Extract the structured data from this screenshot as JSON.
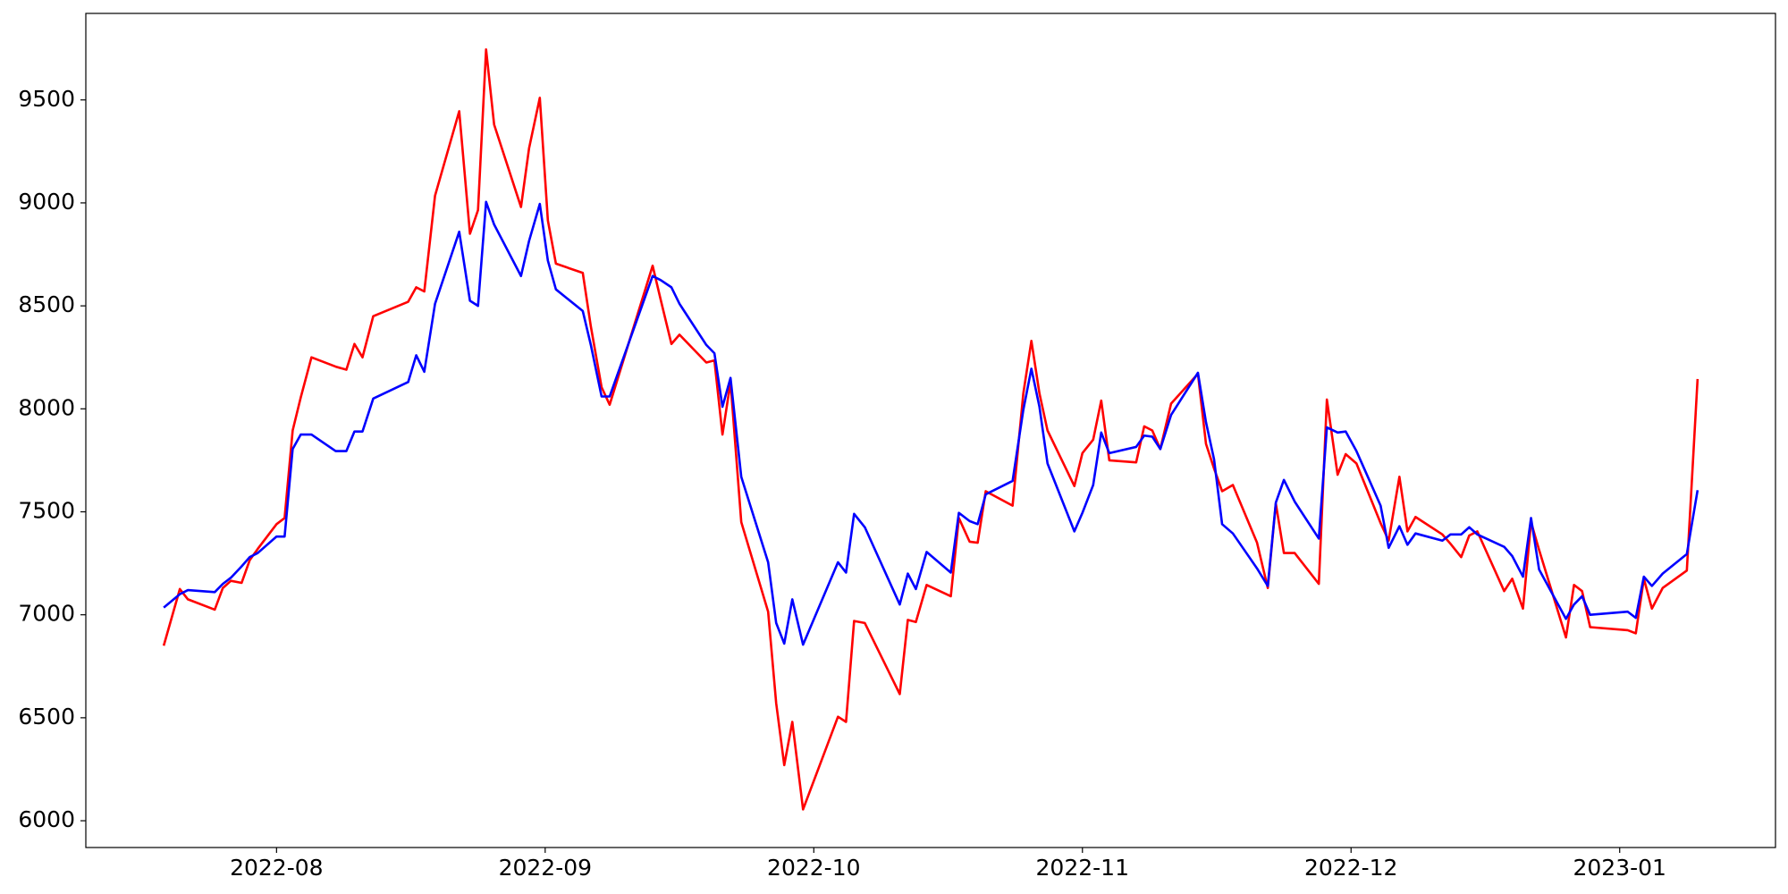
{
  "chart_data": {
    "type": "line",
    "x": [
      7.58,
      7.64,
      7.67,
      7.77,
      7.8,
      7.83,
      7.87,
      7.9,
      7.93,
      8.0,
      8.03,
      8.06,
      8.09,
      8.13,
      8.22,
      8.26,
      8.29,
      8.32,
      8.36,
      8.49,
      8.52,
      8.55,
      8.59,
      8.68,
      8.72,
      8.75,
      8.78,
      8.81,
      8.91,
      8.94,
      8.98,
      9.01,
      9.04,
      9.14,
      9.17,
      9.21,
      9.24,
      9.4,
      9.43,
      9.47,
      9.5,
      9.6,
      9.63,
      9.66,
      9.69,
      9.73,
      9.83,
      9.86,
      9.89,
      9.92,
      9.96,
      10.09,
      10.12,
      10.15,
      10.19,
      10.32,
      10.35,
      10.38,
      10.42,
      10.51,
      10.54,
      10.58,
      10.61,
      10.64,
      10.74,
      10.78,
      10.81,
      10.84,
      10.87,
      10.97,
      11.0,
      11.04,
      11.07,
      11.1,
      11.2,
      11.23,
      11.26,
      11.29,
      11.33,
      11.43,
      11.46,
      11.49,
      11.52,
      11.56,
      11.65,
      11.69,
      11.72,
      11.75,
      11.79,
      11.88,
      11.91,
      11.95,
      11.98,
      12.02,
      12.11,
      12.14,
      12.18,
      12.21,
      12.24,
      12.34,
      12.37,
      12.41,
      12.44,
      12.47,
      12.57,
      12.6,
      12.64,
      12.67,
      12.7,
      12.8,
      12.83,
      12.86,
      12.89,
      13.03,
      13.06,
      13.09,
      13.12,
      13.16,
      13.25,
      13.29
    ],
    "series": [
      {
        "color": "#ff0000",
        "values": [
          6850,
          7125,
          7075,
          7025,
          7130,
          7165,
          7155,
          7265,
          7320,
          7440,
          7470,
          7895,
          8055,
          8250,
          8205,
          8190,
          8315,
          8250,
          8450,
          8520,
          8590,
          8570,
          9035,
          9445,
          8850,
          8965,
          9745,
          9380,
          8980,
          9265,
          9510,
          8915,
          8705,
          8660,
          8400,
          8105,
          8020,
          8695,
          8530,
          8315,
          8360,
          8225,
          8235,
          7875,
          8130,
          7450,
          7015,
          6570,
          6270,
          6480,
          6055,
          6505,
          6480,
          6970,
          6960,
          6615,
          6975,
          6965,
          7145,
          7090,
          7470,
          7355,
          7350,
          7600,
          7530,
          8075,
          8330,
          8075,
          7895,
          7625,
          7785,
          7850,
          8040,
          7750,
          7740,
          7915,
          7895,
          7805,
          8025,
          8170,
          7830,
          7710,
          7600,
          7630,
          7350,
          7130,
          7540,
          7300,
          7300,
          7150,
          8045,
          7680,
          7780,
          7735,
          7445,
          7360,
          7670,
          7405,
          7475,
          7390,
          7345,
          7280,
          7385,
          7405,
          7115,
          7175,
          7030,
          7450,
          7315,
          6890,
          7145,
          7115,
          6940,
          6925,
          6910,
          7175,
          7030,
          7130,
          7215,
          8145
        ]
      },
      {
        "color": "#0000ff",
        "values": [
          7035,
          7100,
          7120,
          7110,
          7150,
          7180,
          7235,
          7280,
          7300,
          7380,
          7380,
          7805,
          7875,
          7875,
          7795,
          7795,
          7890,
          7890,
          8050,
          8130,
          8260,
          8180,
          8510,
          8860,
          8525,
          8500,
          9005,
          8895,
          8645,
          8815,
          8995,
          8720,
          8580,
          8475,
          8310,
          8060,
          8060,
          8645,
          8625,
          8590,
          8510,
          8310,
          8270,
          8010,
          8150,
          7670,
          7255,
          6960,
          6860,
          7075,
          6855,
          7255,
          7205,
          7490,
          7425,
          7050,
          7200,
          7125,
          7305,
          7205,
          7495,
          7455,
          7440,
          7585,
          7650,
          7995,
          8195,
          8010,
          7735,
          7405,
          7495,
          7630,
          7885,
          7785,
          7815,
          7870,
          7865,
          7805,
          7970,
          8175,
          7935,
          7755,
          7440,
          7395,
          7225,
          7140,
          7545,
          7655,
          7550,
          7370,
          7910,
          7885,
          7890,
          7795,
          7530,
          7325,
          7430,
          7340,
          7395,
          7360,
          7390,
          7390,
          7425,
          7390,
          7330,
          7285,
          7185,
          7470,
          7220,
          6980,
          7050,
          7090,
          7000,
          7015,
          6985,
          7185,
          7140,
          7200,
          7295,
          7605
        ]
      }
    ],
    "xlim": [
      7.29,
      13.58
    ],
    "ylim": [
      5870,
      9920
    ],
    "xticks": [
      {
        "value": 8,
        "label": "2022-08"
      },
      {
        "value": 9,
        "label": "2022-09"
      },
      {
        "value": 10,
        "label": "2022-10"
      },
      {
        "value": 11,
        "label": "2022-11"
      },
      {
        "value": 12,
        "label": "2022-12"
      },
      {
        "value": 13,
        "label": "2023-01"
      }
    ],
    "yticks": [
      6000,
      6500,
      7000,
      7500,
      8000,
      8500,
      9000,
      9500
    ]
  }
}
